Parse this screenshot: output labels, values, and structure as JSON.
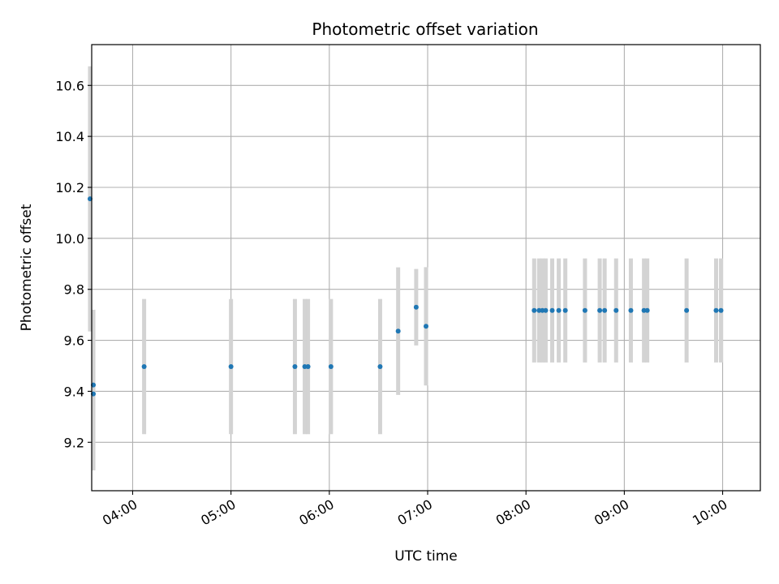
{
  "chart_data": {
    "type": "scatter",
    "title": "Photometric offset variation",
    "xlabel": "UTC time",
    "ylabel": "Photometric offset",
    "x_axis_type": "time",
    "xlim": [
      "03:35",
      "10:23"
    ],
    "ylim": [
      9.01,
      10.76
    ],
    "x_ticks": [
      "04:00",
      "05:00",
      "06:00",
      "07:00",
      "08:00",
      "09:00",
      "10:00"
    ],
    "y_ticks": [
      9.2,
      9.4,
      9.6,
      9.8,
      10.0,
      10.2,
      10.4,
      10.6
    ],
    "y_tick_labels": [
      "9.2",
      "9.4",
      "9.6",
      "9.8",
      "10.0",
      "10.2",
      "10.4",
      "10.6"
    ],
    "grid": true,
    "colors": {
      "marker": "#1f77b4",
      "errorbar": "#d3d3d3",
      "grid": "#b0b0b0"
    },
    "points": [
      {
        "x": "03:34",
        "y": 10.155,
        "err": 0.52
      },
      {
        "x": "03:36",
        "y": 9.39,
        "err": 0.3
      },
      {
        "x": "03:36",
        "y": 9.425,
        "err": 0.295
      },
      {
        "x": "04:07",
        "y": 9.497,
        "err": 0.265
      },
      {
        "x": "05:00",
        "y": 9.497,
        "err": 0.265
      },
      {
        "x": "05:39",
        "y": 9.497,
        "err": 0.265
      },
      {
        "x": "05:45",
        "y": 9.497,
        "err": 0.265
      },
      {
        "x": "05:47",
        "y": 9.497,
        "err": 0.265
      },
      {
        "x": "06:01",
        "y": 9.497,
        "err": 0.265
      },
      {
        "x": "06:31",
        "y": 9.497,
        "err": 0.265
      },
      {
        "x": "06:42",
        "y": 9.636,
        "err": 0.25
      },
      {
        "x": "06:53",
        "y": 9.73,
        "err": 0.15
      },
      {
        "x": "06:59",
        "y": 9.655,
        "err": 0.232
      },
      {
        "x": "08:05",
        "y": 9.717,
        "err": 0.204
      },
      {
        "x": "08:08",
        "y": 9.717,
        "err": 0.204
      },
      {
        "x": "08:10",
        "y": 9.717,
        "err": 0.204
      },
      {
        "x": "08:12",
        "y": 9.717,
        "err": 0.204
      },
      {
        "x": "08:16",
        "y": 9.717,
        "err": 0.204
      },
      {
        "x": "08:20",
        "y": 9.717,
        "err": 0.204
      },
      {
        "x": "08:24",
        "y": 9.717,
        "err": 0.204
      },
      {
        "x": "08:36",
        "y": 9.717,
        "err": 0.204
      },
      {
        "x": "08:45",
        "y": 9.717,
        "err": 0.204
      },
      {
        "x": "08:48",
        "y": 9.717,
        "err": 0.204
      },
      {
        "x": "08:55",
        "y": 9.717,
        "err": 0.204
      },
      {
        "x": "09:04",
        "y": 9.717,
        "err": 0.204
      },
      {
        "x": "09:12",
        "y": 9.717,
        "err": 0.204
      },
      {
        "x": "09:14",
        "y": 9.717,
        "err": 0.204
      },
      {
        "x": "09:38",
        "y": 9.717,
        "err": 0.204
      },
      {
        "x": "09:56",
        "y": 9.717,
        "err": 0.204
      },
      {
        "x": "09:59",
        "y": 9.717,
        "err": 0.204
      }
    ]
  }
}
